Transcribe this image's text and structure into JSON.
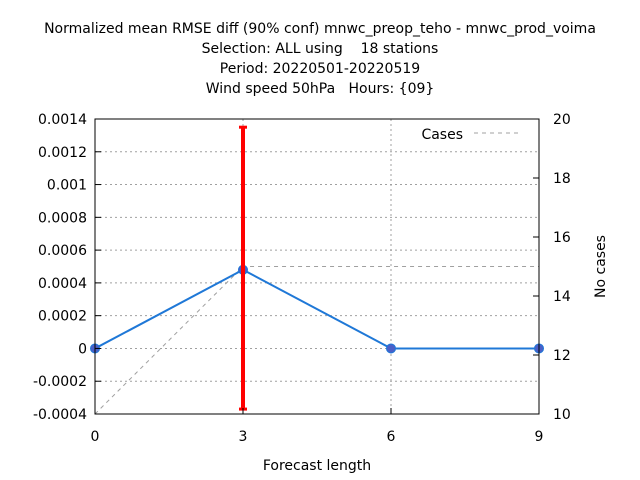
{
  "chart_data": {
    "type": "line",
    "title_lines": [
      "Normalized mean RMSE diff (90% conf) mnwc_preop_teho - mnwc_prod_voima",
      "Selection: ALL using    18 stations",
      "Period: 20220501-20220519",
      "Wind speed 50hPa   Hours: {09}"
    ],
    "xlabel": "Forecast length",
    "ylabel": "",
    "y2label": "No cases",
    "x_ticks": [
      "0",
      "3",
      "6",
      "9"
    ],
    "y_ticks": [
      "-0.0004",
      "-0.0002",
      "0",
      "0.0002",
      "0.0004",
      "0.0006",
      "0.0008",
      "0.001",
      "0.0012",
      "0.0014"
    ],
    "y2_ticks": [
      "10",
      "12",
      "14",
      "16",
      "18",
      "20"
    ],
    "xlim": [
      0,
      9
    ],
    "ylim": [
      -0.0004,
      0.0014
    ],
    "y2lim": [
      10,
      20
    ],
    "grid": true,
    "legend_position": "top-right",
    "series": [
      {
        "x": [
          0,
          3,
          6,
          9
        ],
        "values": [
          0.0,
          0.00048,
          0.0,
          0.0
        ],
        "color": "#1f78d7",
        "marker_color": "#4a5fc8"
      },
      {
        "name": "Cases",
        "axis": "y2",
        "style": "dashed",
        "color": "#a0a0a0",
        "x": [
          0,
          3,
          9
        ],
        "values": [
          10,
          15,
          15
        ]
      }
    ],
    "error_bars": [
      {
        "x": 3,
        "low": -0.00037,
        "high": 0.00135,
        "color": "#ff0000"
      }
    ]
  }
}
